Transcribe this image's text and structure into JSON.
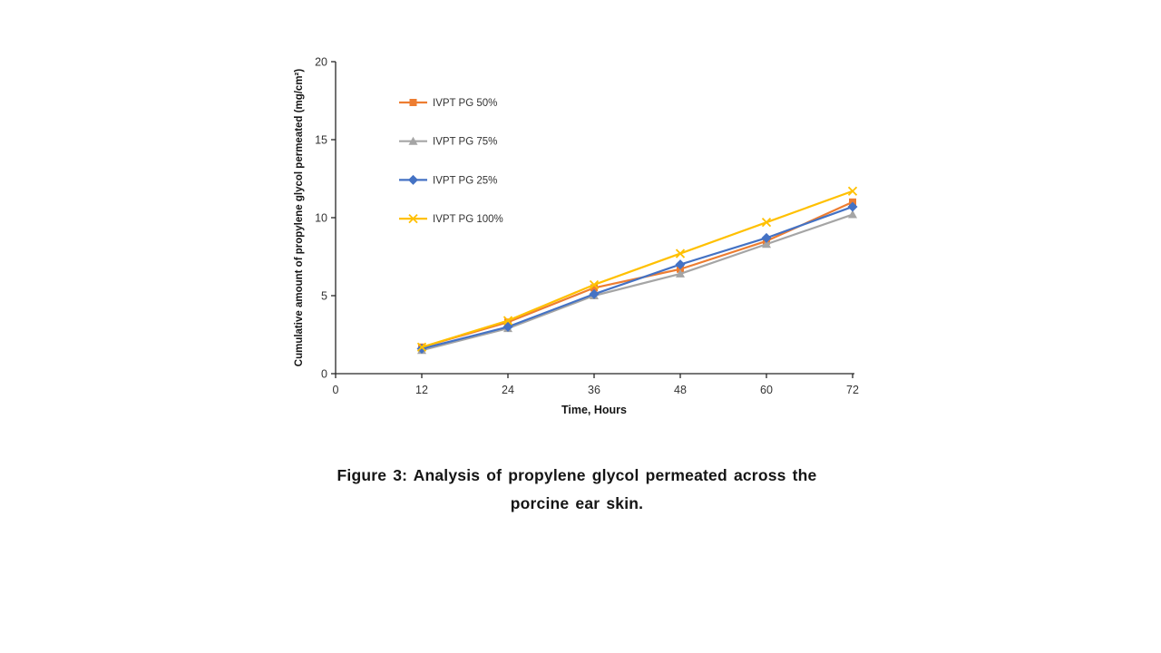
{
  "caption": {
    "line1": "Figure 3: Analysis of propylene glycol permeated across the",
    "line2": "porcine ear skin."
  },
  "chart_data": {
    "type": "line",
    "title": "",
    "xlabel": "Time, Hours",
    "ylabel": "Cumulative amount of propylene glycol permeated (mg/cm²)",
    "x": [
      12,
      24,
      36,
      48,
      60,
      72
    ],
    "x_ticks": [
      "0",
      "12",
      "24",
      "36",
      "48",
      "60",
      "72"
    ],
    "x_tick_values": [
      0,
      12,
      24,
      36,
      48,
      60,
      72
    ],
    "y_ticks": [
      "0",
      "5",
      "10",
      "15",
      "20"
    ],
    "y_tick_values": [
      0,
      5,
      10,
      15,
      20
    ],
    "xlim": [
      0,
      72
    ],
    "ylim": [
      0,
      20
    ],
    "grid": false,
    "legend_position": "upper-left-inside",
    "axis_color": "#262626",
    "tick_text_color": "#333333",
    "legend_text_color": "#333333",
    "series": [
      {
        "name": "IVPT PG 50%",
        "color": "#ED7D31",
        "marker": "square",
        "values": [
          1.7,
          3.3,
          5.5,
          6.7,
          8.5,
          11.0
        ]
      },
      {
        "name": "IVPT PG 75%",
        "color": "#A5A5A5",
        "marker": "triangle",
        "values": [
          1.5,
          2.9,
          5.0,
          6.4,
          8.3,
          10.2
        ]
      },
      {
        "name": "IVPT PG 25%",
        "color": "#4472C4",
        "marker": "diamond",
        "values": [
          1.6,
          3.0,
          5.1,
          7.0,
          8.7,
          10.7
        ]
      },
      {
        "name": "IVPT PG 100%",
        "color": "#FFC000",
        "marker": "x",
        "values": [
          1.7,
          3.4,
          5.7,
          7.7,
          9.7,
          11.7
        ]
      }
    ]
  }
}
